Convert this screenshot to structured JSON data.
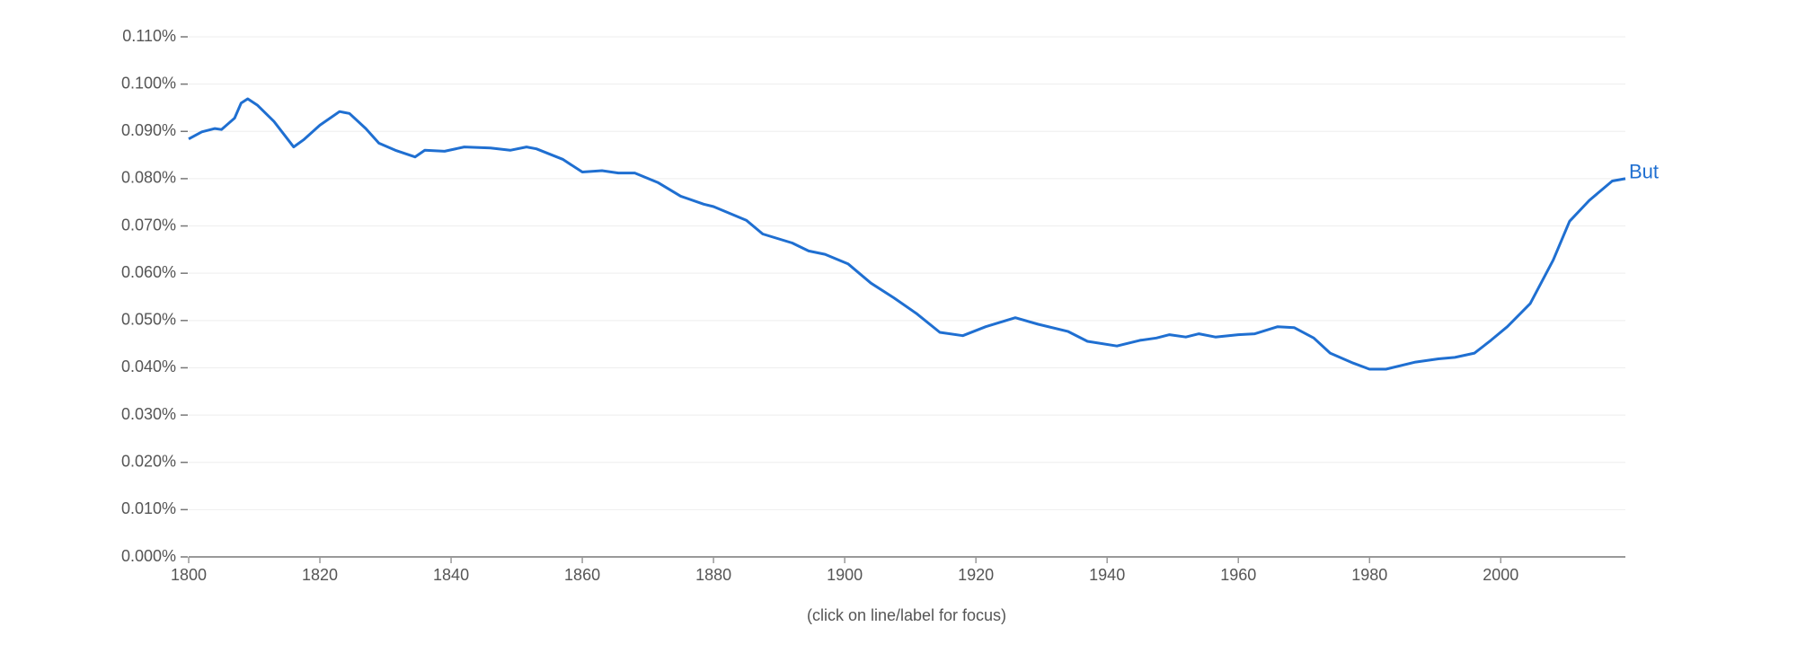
{
  "chart_data": {
    "type": "line",
    "note": "(click on line/label for focus)",
    "x": [
      1800,
      1802,
      1804,
      1805,
      1807,
      1808,
      1809,
      1810.5,
      1813,
      1816,
      1817.5,
      1820,
      1823,
      1824.5,
      1827,
      1829,
      1831.5,
      1834.5,
      1836,
      1839,
      1842,
      1846,
      1849,
      1851.5,
      1853,
      1857,
      1860,
      1863,
      1865.5,
      1868,
      1871.5,
      1875,
      1878.5,
      1880,
      1885,
      1887.5,
      1892,
      1894.5,
      1897,
      1900.5,
      1904,
      1907.5,
      1911,
      1914.5,
      1918,
      1921.5,
      1926,
      1929.5,
      1934,
      1937,
      1941.5,
      1945,
      1947.5,
      1949.5,
      1952,
      1954,
      1956.5,
      1960,
      1962.5,
      1966,
      1968.5,
      1971.5,
      1974,
      1977.5,
      1980,
      1982.5,
      1987,
      1990.5,
      1993,
      1996,
      1998.5,
      2001,
      2004.5,
      2008,
      2010.5,
      2013.5,
      2017,
      2019
    ],
    "series": [
      {
        "name": "But",
        "color": "#1f6fd1",
        "values": [
          0.0884,
          0.0899,
          0.0906,
          0.0904,
          0.0928,
          0.096,
          0.0969,
          0.0955,
          0.0921,
          0.0867,
          0.0882,
          0.0913,
          0.0942,
          0.0938,
          0.0906,
          0.0875,
          0.086,
          0.0846,
          0.086,
          0.0858,
          0.0867,
          0.0865,
          0.086,
          0.0867,
          0.0863,
          0.0841,
          0.0814,
          0.0817,
          0.0812,
          0.0812,
          0.0792,
          0.0763,
          0.0746,
          0.0741,
          0.0712,
          0.0683,
          0.0664,
          0.0647,
          0.064,
          0.062,
          0.0579,
          0.0548,
          0.0514,
          0.0475,
          0.0468,
          0.0487,
          0.0506,
          0.0492,
          0.0477,
          0.0456,
          0.0446,
          0.0458,
          0.0463,
          0.047,
          0.0465,
          0.0472,
          0.0465,
          0.047,
          0.0472,
          0.0487,
          0.0485,
          0.0463,
          0.0431,
          0.041,
          0.0397,
          0.0397,
          0.0412,
          0.0419,
          0.0422,
          0.0431,
          0.0458,
          0.0487,
          0.0536,
          0.0628,
          0.071,
          0.0754,
          0.0795,
          0.08
        ]
      }
    ],
    "xlim": [
      1800,
      2019
    ],
    "xticks": [
      1800,
      1820,
      1840,
      1860,
      1880,
      1900,
      1920,
      1940,
      1960,
      1980,
      2000
    ],
    "ylim": [
      0,
      0.11
    ],
    "yticks": [
      {
        "value": 0,
        "label": "0.000%"
      },
      {
        "value": 0.01,
        "label": "0.010%"
      },
      {
        "value": 0.02,
        "label": "0.020%"
      },
      {
        "value": 0.03,
        "label": "0.030%"
      },
      {
        "value": 0.04,
        "label": "0.040%"
      },
      {
        "value": 0.05,
        "label": "0.050%"
      },
      {
        "value": 0.06,
        "label": "0.060%"
      },
      {
        "value": 0.07,
        "label": "0.070%"
      },
      {
        "value": 0.08,
        "label": "0.080%"
      },
      {
        "value": 0.09,
        "label": "0.090%"
      },
      {
        "value": 0.1,
        "label": "0.100%"
      },
      {
        "value": 0.11,
        "label": "0.110%"
      }
    ],
    "grid": true
  }
}
